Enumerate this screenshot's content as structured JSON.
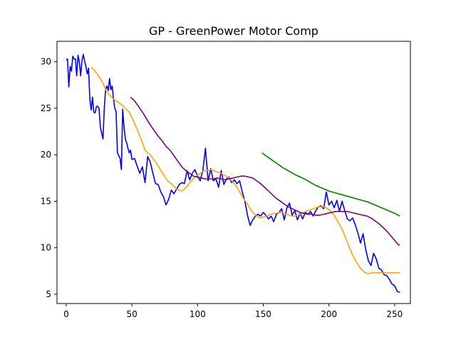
{
  "chart_data": {
    "type": "line",
    "title": "GP - GreenPower Motor Comp",
    "xlabel": "",
    "ylabel": "",
    "xlim": [
      -7,
      262
    ],
    "ylim": [
      4.0,
      32.2
    ],
    "xticks": [
      0,
      50,
      100,
      150,
      200,
      250
    ],
    "yticks": [
      5,
      10,
      15,
      20,
      25,
      30
    ],
    "grid": false,
    "legend": "none",
    "series": [
      {
        "color": "#0000ff",
        "x": [
          0,
          1,
          2,
          3,
          4,
          5,
          6,
          7,
          8,
          9,
          10,
          11,
          12,
          13,
          14,
          15,
          16,
          17,
          18,
          19,
          20,
          21,
          22,
          23,
          24,
          25,
          26,
          27,
          28,
          29,
          30,
          31,
          32,
          33,
          34,
          35,
          36,
          37,
          38,
          39,
          40,
          41,
          42,
          43,
          44,
          45,
          46,
          47,
          48,
          49,
          50,
          52,
          54,
          56,
          58,
          60,
          62,
          64,
          66,
          68,
          70,
          72,
          74,
          76,
          78,
          80,
          82,
          84,
          86,
          88,
          90,
          92,
          94,
          96,
          98,
          100,
          102,
          104,
          106,
          108,
          110,
          112,
          114,
          116,
          118,
          120,
          122,
          124,
          126,
          128,
          130,
          132,
          134,
          136,
          138,
          140,
          142,
          144,
          146,
          148,
          150,
          152,
          154,
          156,
          158,
          160,
          162,
          164,
          166,
          168,
          170,
          172,
          174,
          176,
          178,
          180,
          182,
          184,
          186,
          188,
          190,
          192,
          194,
          196,
          198,
          200,
          202,
          204,
          206,
          208,
          210,
          212,
          214,
          216,
          218,
          220,
          222,
          224,
          226,
          228,
          230,
          232,
          234,
          236,
          238,
          240,
          242,
          244,
          246,
          248,
          250,
          252,
          254
        ],
        "y": [
          30.2,
          30.3,
          27.3,
          29.5,
          29.0,
          30.6,
          30.3,
          30.3,
          28.5,
          30.7,
          30.0,
          28.5,
          30.1,
          30.8,
          30.1,
          29.5,
          28.7,
          29.3,
          26.0,
          24.8,
          26.2,
          24.6,
          24.5,
          25.2,
          25.2,
          25.0,
          23.0,
          22.3,
          21.7,
          25.0,
          27.0,
          27.4,
          26.9,
          28.2,
          27.0,
          27.4,
          26.0,
          25.0,
          24.6,
          20.2,
          19.9,
          19.6,
          18.4,
          24.9,
          23.0,
          21.7,
          21.3,
          20.7,
          20.2,
          20.5,
          19.5,
          19.6,
          18.8,
          18.0,
          18.7,
          17.0,
          19.8,
          19.2,
          18.0,
          16.9,
          16.8,
          16.0,
          15.5,
          14.6,
          15.2,
          16.2,
          15.8,
          16.3,
          16.8,
          17.0,
          16.9,
          18.3,
          17.3,
          18.0,
          18.4,
          17.7,
          17.2,
          18.3,
          20.7,
          17.2,
          18.5,
          17.2,
          17.4,
          16.5,
          18.3,
          16.8,
          17.4,
          17.6,
          17.0,
          17.3,
          16.9,
          17.2,
          16.0,
          15.0,
          13.5,
          12.4,
          13.0,
          13.4,
          13.6,
          13.4,
          13.8,
          13.5,
          13.1,
          13.4,
          12.8,
          13.6,
          13.8,
          14.2,
          13.0,
          14.3,
          14.8,
          13.5,
          14.0,
          13.0,
          13.7,
          13.1,
          13.8,
          13.6,
          13.9,
          13.4,
          14.0,
          14.4,
          14.5,
          14.2,
          16.0,
          14.6,
          15.0,
          14.3,
          15.1,
          13.9,
          15.0,
          14.0,
          13.1,
          12.9,
          13.2,
          12.5,
          11.6,
          10.5,
          11.5,
          9.8,
          8.6,
          8.1,
          9.4,
          8.8,
          7.8,
          7.6,
          7.1,
          7.0,
          6.6,
          6.1,
          5.9,
          5.3,
          5.2
        ]
      },
      {
        "color": "#ffa500",
        "x": [
          19,
          22,
          25,
          28,
          30,
          33,
          36,
          39,
          42,
          45,
          48,
          50,
          52,
          54,
          56,
          58,
          60,
          62,
          64,
          66,
          68,
          70,
          72,
          74,
          76,
          78,
          80,
          82,
          84,
          86,
          88,
          90,
          92,
          94,
          96,
          98,
          100,
          102,
          104,
          106,
          108,
          110,
          112,
          114,
          116,
          118,
          120,
          122,
          124,
          126,
          128,
          130,
          132,
          134,
          136,
          138,
          140,
          142,
          144,
          146,
          148,
          150,
          152,
          154,
          156,
          158,
          160,
          162,
          164,
          166,
          168,
          170,
          172,
          174,
          176,
          178,
          180,
          182,
          184,
          186,
          188,
          190,
          192,
          194,
          196,
          198,
          200,
          202,
          204,
          206,
          208,
          210,
          212,
          214,
          216,
          218,
          220,
          222,
          224,
          226,
          228,
          230,
          232,
          234,
          236,
          238,
          240,
          242,
          244,
          246,
          248,
          250,
          252,
          254
        ],
        "y": [
          29.4,
          29.0,
          28.4,
          27.7,
          27.0,
          26.4,
          26.0,
          25.7,
          25.4,
          25.0,
          24.6,
          24.0,
          23.4,
          22.7,
          22.0,
          21.3,
          20.5,
          20.2,
          20.0,
          19.6,
          19.2,
          18.8,
          18.3,
          17.9,
          17.4,
          17.1,
          16.9,
          16.6,
          16.3,
          16.2,
          16.1,
          16.3,
          16.6,
          17.0,
          17.3,
          17.6,
          17.8,
          18.0,
          18.2,
          18.3,
          18.3,
          18.4,
          18.3,
          18.2,
          18.1,
          18.0,
          17.8,
          17.7,
          17.5,
          17.2,
          16.9,
          16.5,
          16.0,
          15.5,
          15.1,
          14.7,
          14.2,
          13.8,
          13.5,
          13.3,
          13.2,
          13.3,
          13.4,
          13.5,
          13.6,
          13.7,
          13.7,
          13.8,
          13.8,
          13.7,
          13.6,
          13.5,
          13.4,
          13.4,
          13.5,
          13.6,
          13.7,
          13.9,
          14.0,
          14.1,
          14.2,
          14.3,
          14.4,
          14.4,
          14.4,
          14.3,
          14.1,
          13.8,
          13.5,
          13.0,
          12.5,
          12.0,
          11.3,
          10.6,
          9.9,
          9.2,
          8.7,
          8.2,
          7.8,
          7.5,
          7.3,
          7.2,
          7.3,
          7.3,
          7.3,
          7.3,
          7.3,
          7.3,
          7.3,
          7.3,
          7.3,
          7.3,
          7.3,
          7.3
        ]
      },
      {
        "color": "#800080",
        "x": [
          49,
          52,
          55,
          58,
          61,
          64,
          67,
          70,
          73,
          76,
          79,
          82,
          85,
          88,
          91,
          94,
          97,
          100,
          103,
          106,
          109,
          112,
          115,
          118,
          121,
          124,
          127,
          130,
          133,
          136,
          139,
          142,
          145,
          148,
          151,
          154,
          157,
          160,
          163,
          166,
          169,
          172,
          175,
          178,
          181,
          184,
          187,
          190,
          193,
          196,
          199,
          202,
          205,
          208,
          211,
          214,
          217,
          220,
          223,
          226,
          229,
          232,
          235,
          238,
          241,
          244,
          247,
          250,
          253,
          254
        ],
        "y": [
          26.2,
          25.8,
          25.2,
          24.6,
          23.9,
          23.2,
          22.6,
          22.0,
          21.5,
          20.9,
          20.5,
          19.9,
          19.3,
          18.7,
          18.3,
          18.0,
          17.7,
          17.6,
          17.5,
          17.4,
          17.4,
          17.4,
          17.5,
          17.4,
          17.3,
          17.4,
          17.5,
          17.6,
          17.7,
          17.7,
          17.6,
          17.5,
          17.2,
          16.9,
          16.5,
          16.1,
          15.7,
          15.3,
          15.0,
          14.7,
          14.4,
          14.2,
          14.0,
          13.8,
          13.7,
          13.6,
          13.6,
          13.5,
          13.5,
          13.6,
          13.7,
          13.8,
          13.9,
          13.9,
          13.9,
          13.9,
          13.8,
          13.7,
          13.6,
          13.5,
          13.4,
          13.2,
          12.9,
          12.6,
          12.2,
          11.8,
          11.3,
          10.8,
          10.3,
          10.3
        ]
      },
      {
        "color": "#008000",
        "x": [
          149,
          155,
          160,
          165,
          170,
          175,
          180,
          185,
          190,
          195,
          200,
          205,
          210,
          215,
          220,
          225,
          230,
          235,
          240,
          245,
          250,
          254
        ],
        "y": [
          20.2,
          19.6,
          19.1,
          18.6,
          18.2,
          17.8,
          17.5,
          17.1,
          16.7,
          16.4,
          16.1,
          15.9,
          15.7,
          15.5,
          15.3,
          15.1,
          14.9,
          14.6,
          14.3,
          14.0,
          13.7,
          13.4
        ]
      }
    ]
  }
}
